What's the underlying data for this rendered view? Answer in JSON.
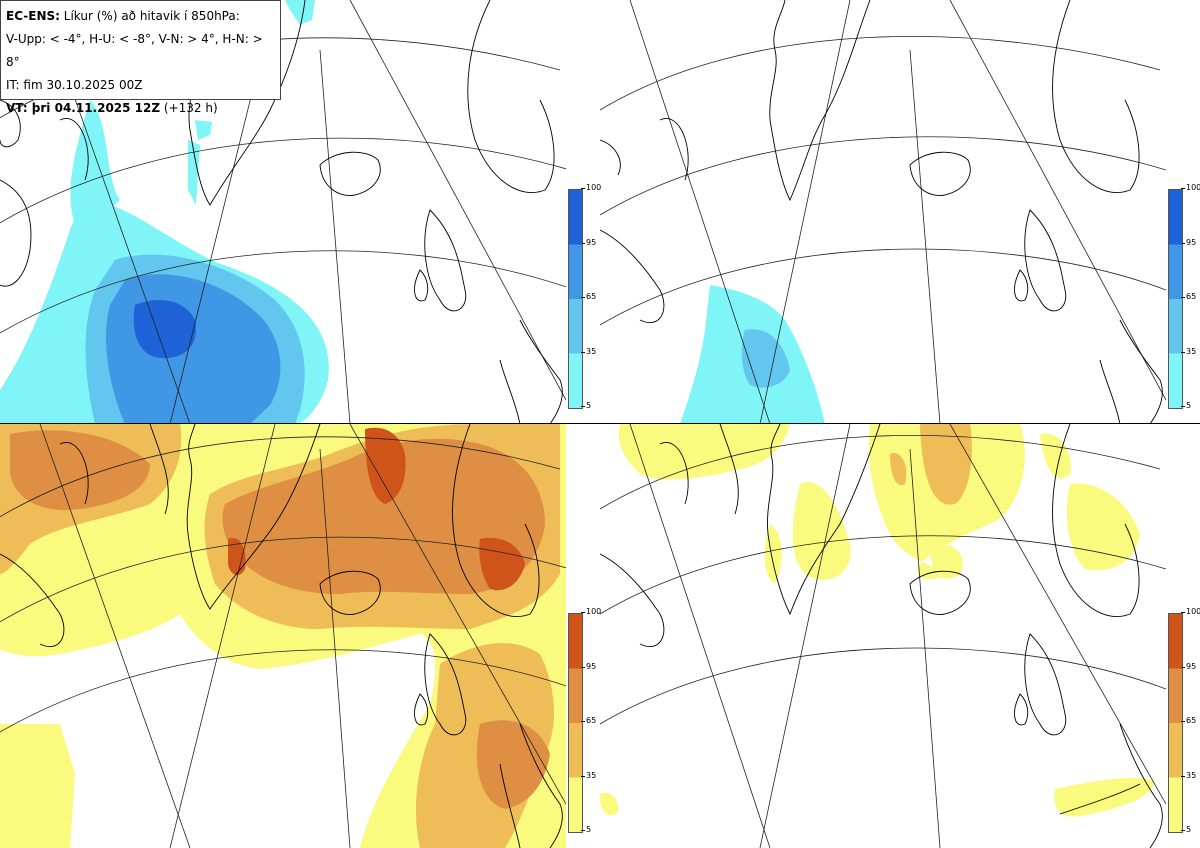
{
  "info": {
    "model": "EC-ENS:",
    "title": "Líkur (%) að hitavik í 850hPa:",
    "thresholds": "V-Upp: < -4°, H-U: < -8°, V-N: > 4°, H-N: > 8°",
    "it_label": "IT: fim 30.10.2025 00Z",
    "vt_label": "VT: þri 04.11.2025 12Z",
    "vt_lead": "(+132 h)"
  },
  "colorbar": {
    "ticks": [
      "100",
      "95",
      "65",
      "35",
      "5"
    ],
    "blue_colors": [
      "#1f62d8",
      "#3f97e6",
      "#63c6ee",
      "#7ff5f8"
    ],
    "orange_colors": [
      "#cf5419",
      "#de8f43",
      "#eebd58",
      "#fafa7f"
    ]
  }
}
